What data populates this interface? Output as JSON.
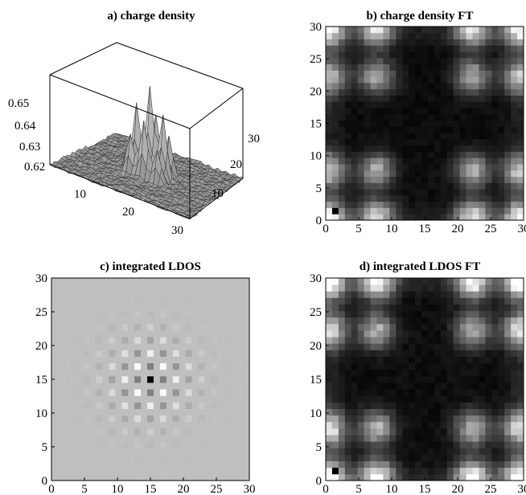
{
  "panels": {
    "a": {
      "title": "a) charge  density",
      "z_ticks": [
        "0.65",
        "0.64",
        "0.63",
        "0.62"
      ],
      "x_ticks": [
        "10",
        "20",
        "30"
      ],
      "y_ticks": [
        "10",
        "20",
        "30"
      ]
    },
    "b": {
      "title": "b) charge  density FT",
      "ticks": [
        "0",
        "5",
        "10",
        "15",
        "20",
        "25",
        "30"
      ]
    },
    "c": {
      "title": "c) integrated  LDOS",
      "ticks": [
        "0",
        "5",
        "10",
        "15",
        "20",
        "25",
        "30"
      ]
    },
    "d": {
      "title": "d) integrated  LDOS FT",
      "ticks": [
        "0",
        "5",
        "10",
        "15",
        "20",
        "25",
        "30"
      ]
    }
  },
  "chart_data": [
    {
      "type": "surface3d",
      "panel": "a",
      "title": "a) charge  density",
      "grid_size": 30,
      "zlim": [
        0.615,
        0.655
      ],
      "baseline": 0.62,
      "peaks": [
        {
          "x": 15,
          "y": 15,
          "z": 0.654
        },
        {
          "x": 12,
          "y": 15,
          "z": 0.645
        },
        {
          "x": 18,
          "y": 15,
          "z": 0.645
        },
        {
          "x": 15,
          "y": 12,
          "z": 0.642
        },
        {
          "x": 15,
          "y": 18,
          "z": 0.642
        },
        {
          "x": 12,
          "y": 12,
          "z": 0.635
        },
        {
          "x": 18,
          "y": 18,
          "z": 0.635
        },
        {
          "x": 12,
          "y": 18,
          "z": 0.633
        },
        {
          "x": 18,
          "y": 12,
          "z": 0.633
        }
      ]
    },
    {
      "type": "heatmap",
      "panel": "b",
      "title": "b) charge  density FT",
      "grid_size": 30,
      "xlim": [
        0,
        30
      ],
      "ylim": [
        0,
        30
      ],
      "colormap": "grayscale",
      "bright_spots": [
        {
          "x": 0,
          "y": 0,
          "v": 0.9
        },
        {
          "x": 7.5,
          "y": 0,
          "v": 0.85
        },
        {
          "x": 22.5,
          "y": 0,
          "v": 0.85
        },
        {
          "x": 30,
          "y": 0,
          "v": 0.9
        },
        {
          "x": 0,
          "y": 7.5,
          "v": 0.75
        },
        {
          "x": 7.5,
          "y": 7.5,
          "v": 0.7
        },
        {
          "x": 22.5,
          "y": 7.5,
          "v": 0.7
        },
        {
          "x": 30,
          "y": 7.5,
          "v": 0.75
        },
        {
          "x": 0,
          "y": 22.5,
          "v": 0.75
        },
        {
          "x": 7.5,
          "y": 22.5,
          "v": 0.7
        },
        {
          "x": 22.5,
          "y": 22.5,
          "v": 0.7
        },
        {
          "x": 30,
          "y": 22.5,
          "v": 0.75
        },
        {
          "x": 0,
          "y": 30,
          "v": 0.9
        },
        {
          "x": 7.5,
          "y": 30,
          "v": 0.85
        },
        {
          "x": 22.5,
          "y": 30,
          "v": 0.85
        },
        {
          "x": 30,
          "y": 30,
          "v": 0.9
        }
      ],
      "dark_cell": {
        "x": 0.5,
        "y": 0.5
      }
    },
    {
      "type": "heatmap",
      "panel": "c",
      "title": "c) integrated  LDOS",
      "grid_size": 30,
      "xlim": [
        0,
        30
      ],
      "ylim": [
        0,
        30
      ],
      "colormap": "grayscale",
      "background": 0.75,
      "center": {
        "x": 15,
        "y": 15
      },
      "pattern_period": 2.5
    },
    {
      "type": "heatmap",
      "panel": "d",
      "title": "d) integrated  LDOS FT",
      "grid_size": 30,
      "xlim": [
        0,
        30
      ],
      "ylim": [
        0,
        30
      ],
      "colormap": "grayscale",
      "bright_spots": [
        {
          "x": 0,
          "y": 0,
          "v": 0.95
        },
        {
          "x": 7.5,
          "y": 0,
          "v": 0.95
        },
        {
          "x": 22.5,
          "y": 0,
          "v": 0.95
        },
        {
          "x": 30,
          "y": 0,
          "v": 0.95
        },
        {
          "x": 0,
          "y": 7.5,
          "v": 0.85
        },
        {
          "x": 7.5,
          "y": 7.5,
          "v": 0.7
        },
        {
          "x": 22.5,
          "y": 7.5,
          "v": 0.7
        },
        {
          "x": 30,
          "y": 7.5,
          "v": 0.85
        },
        {
          "x": 0,
          "y": 22.5,
          "v": 0.85
        },
        {
          "x": 7.5,
          "y": 22.5,
          "v": 0.7
        },
        {
          "x": 22.5,
          "y": 22.5,
          "v": 0.7
        },
        {
          "x": 30,
          "y": 22.5,
          "v": 0.85
        },
        {
          "x": 0,
          "y": 30,
          "v": 0.95
        },
        {
          "x": 7.5,
          "y": 30,
          "v": 0.95
        },
        {
          "x": 22.5,
          "y": 30,
          "v": 0.95
        },
        {
          "x": 30,
          "y": 30,
          "v": 0.95
        }
      ],
      "dark_cell": {
        "x": 0.5,
        "y": 0.5
      }
    }
  ]
}
